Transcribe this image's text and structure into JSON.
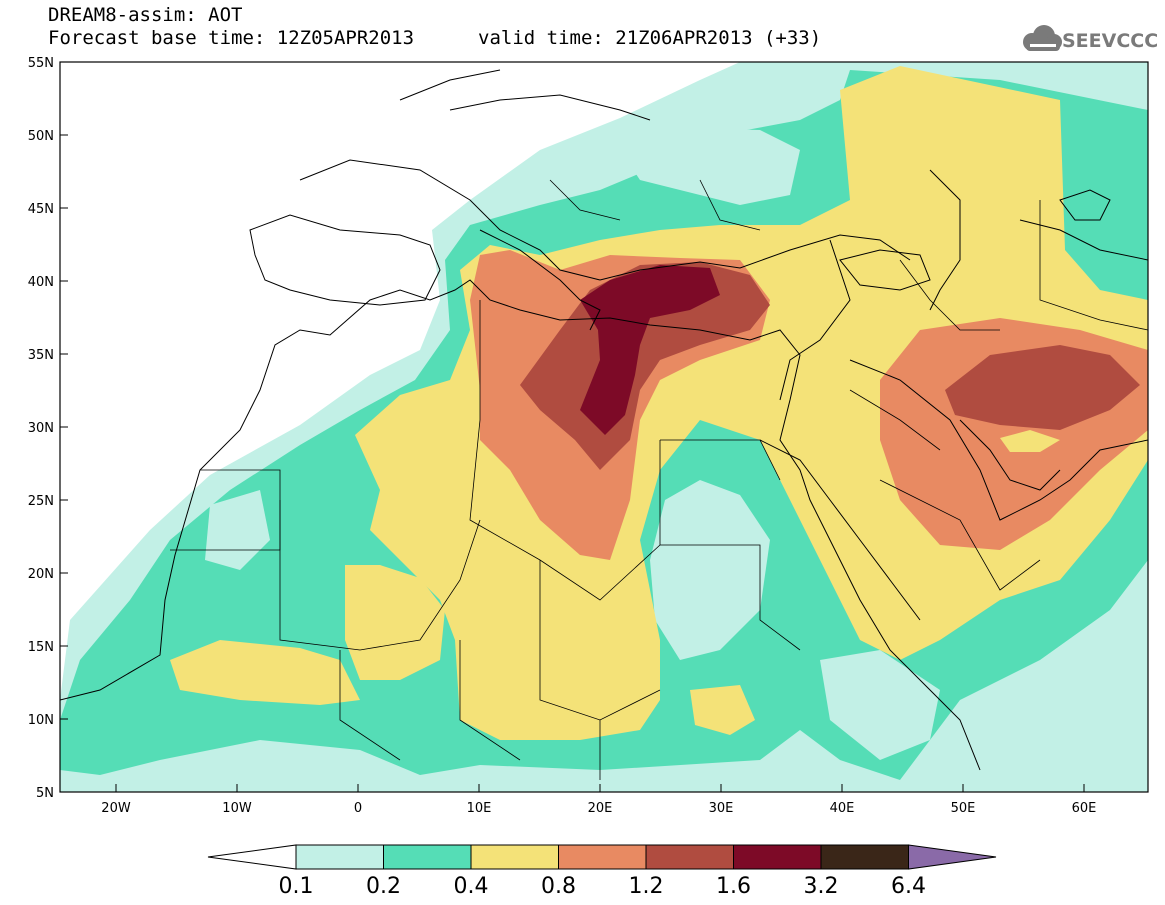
{
  "header": {
    "title": "DREAM8-assim: AOT",
    "forecast_base": "Forecast base time: 12Z05APR2013",
    "valid_time": "valid time: 21Z06APR2013 (+33)"
  },
  "logo": {
    "text": "SEEVCCC",
    "icon": "cloud-icon"
  },
  "axes": {
    "lat_labels": [
      "55N",
      "50N",
      "45N",
      "40N",
      "35N",
      "30N",
      "25N",
      "20N",
      "15N",
      "10N",
      "5N"
    ],
    "lon_labels": [
      "20W",
      "10W",
      "0",
      "10E",
      "20E",
      "30E",
      "40E",
      "50E",
      "60E"
    ]
  },
  "colorbar": {
    "labels": [
      "0.1",
      "0.2",
      "0.4",
      "0.8",
      "1.2",
      "1.6",
      "3.2",
      "6.4"
    ],
    "colors": [
      "#ffffff",
      "#c2f0e6",
      "#55ddb6",
      "#f4e278",
      "#e88a62",
      "#b04c40",
      "#7d0a27",
      "#3a2618",
      "#8a6aa8"
    ]
  },
  "map": {
    "variable": "Aerosol optical thickness",
    "level_colors": {
      "l01": "#c2f0e6",
      "l02": "#55ddb6",
      "l04": "#f4e278",
      "l08": "#e88a62",
      "l12": "#b04c40",
      "l16": "#7d0a27"
    }
  }
}
